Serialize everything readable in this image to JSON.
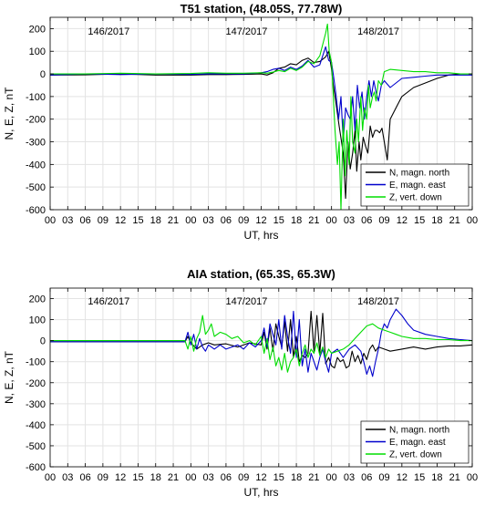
{
  "chart_data": [
    {
      "type": "line",
      "title": "T51 station, (48.05S, 77.78W)",
      "xlabel": "UT, hrs",
      "ylabel": "N, E, Z, nT",
      "xlim": [
        0,
        72
      ],
      "ylim": [
        -600,
        250
      ],
      "yticks": [
        -600,
        -500,
        -400,
        -300,
        -200,
        -100,
        0,
        100,
        200
      ],
      "xtick_labels": [
        "00",
        "03",
        "06",
        "09",
        "12",
        "15",
        "18",
        "21",
        "00",
        "03",
        "06",
        "09",
        "12",
        "15",
        "18",
        "21",
        "00",
        "03",
        "06",
        "09",
        "12",
        "15",
        "18",
        "21",
        "00"
      ],
      "day_labels": [
        {
          "text": "146/2017",
          "x": 10,
          "y": 190
        },
        {
          "text": "147/2017",
          "x": 33.5,
          "y": 190
        },
        {
          "text": "148/2017",
          "x": 56,
          "y": 190
        }
      ],
      "grid": true,
      "legend_position": "lower-right",
      "series": [
        {
          "name": "N, magn. north",
          "color": "#000000",
          "x": [
            0,
            6,
            12,
            18,
            24,
            27,
            30,
            33,
            36,
            37,
            38,
            39,
            40,
            41,
            42,
            43,
            44,
            45,
            46,
            47,
            47.5,
            48,
            48.3,
            48.7,
            49.3,
            50,
            50.4,
            50.8,
            51.2,
            51.6,
            52,
            52.3,
            52.7,
            53,
            53.4,
            53.8,
            54.2,
            54.6,
            55,
            55.4,
            55.8,
            56.2,
            56.6,
            57,
            57.5,
            58,
            59,
            60,
            62,
            64,
            66,
            68,
            70,
            72
          ],
          "y": [
            -5,
            -4,
            0,
            -5,
            -5,
            -3,
            -3,
            -2,
            0,
            -5,
            5,
            25,
            30,
            45,
            40,
            60,
            70,
            50,
            55,
            75,
            100,
            20,
            -50,
            -120,
            -230,
            -350,
            -550,
            -300,
            -420,
            -350,
            -250,
            -430,
            -300,
            -380,
            -280,
            -320,
            -350,
            -230,
            -280,
            -250,
            -250,
            -260,
            -240,
            -300,
            -380,
            -200,
            -150,
            -100,
            -60,
            -40,
            -20,
            -5,
            0,
            0
          ]
        },
        {
          "name": "E, magn. east",
          "color": "#0000cc",
          "x": [
            0,
            6,
            12,
            18,
            24,
            27,
            30,
            33,
            36,
            37,
            38,
            39,
            40,
            41,
            42,
            43,
            44,
            45,
            46,
            47,
            47.5,
            48,
            48.4,
            48.8,
            49.2,
            49.6,
            50,
            50.4,
            50.8,
            51.2,
            51.6,
            52,
            52.4,
            52.8,
            53.2,
            53.6,
            54,
            54.4,
            54.8,
            55.2,
            55.6,
            56,
            56.5,
            57,
            58,
            59,
            60,
            62,
            64,
            66,
            68,
            70,
            72
          ],
          "y": [
            -5,
            0,
            -3,
            0,
            -2,
            0,
            0,
            0,
            5,
            10,
            20,
            25,
            15,
            30,
            20,
            35,
            60,
            30,
            40,
            120,
            60,
            50,
            -20,
            -100,
            -200,
            -100,
            -300,
            -150,
            -180,
            -200,
            -100,
            -250,
            -50,
            -150,
            -80,
            -200,
            -100,
            -30,
            -100,
            -30,
            -80,
            -120,
            -50,
            -30,
            -60,
            -40,
            -20,
            -15,
            -10,
            -5,
            -5,
            -5,
            -5
          ]
        },
        {
          "name": "Z, vert. down",
          "color": "#00dd00",
          "x": [
            0,
            6,
            12,
            18,
            24,
            27,
            30,
            33,
            36,
            37,
            38,
            39,
            40,
            41,
            42,
            43,
            44,
            45,
            46,
            47,
            47.3,
            47.6,
            48,
            48.3,
            48.6,
            49,
            49.3,
            49.6,
            50,
            50.3,
            50.6,
            51,
            51.3,
            51.6,
            52,
            52.3,
            52.6,
            53,
            53.3,
            53.6,
            54,
            54.3,
            54.6,
            55,
            55.3,
            55.6,
            56,
            56.5,
            57,
            58,
            60,
            62,
            64,
            66,
            68,
            70,
            72
          ],
          "y": [
            0,
            0,
            3,
            0,
            2,
            5,
            3,
            3,
            5,
            3,
            8,
            15,
            10,
            25,
            15,
            30,
            55,
            45,
            80,
            180,
            220,
            100,
            50,
            -100,
            -250,
            -400,
            -300,
            -600,
            -200,
            -450,
            -250,
            -400,
            -100,
            -300,
            -350,
            -200,
            -300,
            -100,
            -250,
            -150,
            -200,
            -50,
            -150,
            -100,
            -80,
            -120,
            -30,
            -50,
            10,
            20,
            15,
            10,
            10,
            5,
            5,
            0,
            0
          ]
        }
      ]
    },
    {
      "type": "line",
      "title": "AIA station, (65.3S, 65.3W)",
      "xlabel": "UT, hrs",
      "ylabel": "N, E, Z, nT",
      "xlim": [
        0,
        72
      ],
      "ylim": [
        -600,
        250
      ],
      "yticks": [
        -600,
        -500,
        -400,
        -300,
        -200,
        -100,
        0,
        100,
        200
      ],
      "xtick_labels": [
        "00",
        "03",
        "06",
        "09",
        "12",
        "15",
        "18",
        "21",
        "00",
        "03",
        "06",
        "09",
        "12",
        "15",
        "18",
        "21",
        "00",
        "03",
        "06",
        "09",
        "12",
        "15",
        "18",
        "21",
        "00"
      ],
      "day_labels": [
        {
          "text": "146/2017",
          "x": 10,
          "y": 190
        },
        {
          "text": "147/2017",
          "x": 33.5,
          "y": 190
        },
        {
          "text": "148/2017",
          "x": 56,
          "y": 190
        }
      ],
      "grid": true,
      "legend_position": "lower-right",
      "series": [
        {
          "name": "N, magn. north",
          "color": "#000000",
          "x": [
            0,
            6,
            12,
            18,
            23,
            23.5,
            24,
            25,
            26,
            27,
            28,
            30,
            32,
            34,
            36,
            36.5,
            37,
            37.5,
            38,
            38.5,
            39,
            39.5,
            40,
            40.5,
            41,
            41.5,
            42,
            42.5,
            43,
            43.5,
            44,
            44.5,
            45,
            45.5,
            46,
            46.5,
            47,
            47.5,
            48,
            48.5,
            49,
            49.5,
            50,
            50.5,
            51,
            51.5,
            52,
            52.5,
            53,
            53.5,
            54,
            54.5,
            55,
            55.5,
            56,
            57,
            58,
            60,
            62,
            64,
            66,
            68,
            70,
            72
          ],
          "y": [
            -5,
            -5,
            -5,
            -5,
            -5,
            20,
            -10,
            -40,
            -20,
            -10,
            -20,
            -15,
            -30,
            -10,
            -20,
            40,
            -40,
            60,
            -50,
            80,
            20,
            -30,
            90,
            -50,
            100,
            -80,
            20,
            -100,
            -70,
            -80,
            -60,
            140,
            -50,
            120,
            -60,
            130,
            -110,
            -80,
            -120,
            -130,
            -80,
            -100,
            -90,
            -130,
            -120,
            -50,
            -100,
            -70,
            -110,
            -60,
            -90,
            -40,
            -20,
            -50,
            -30,
            -40,
            -50,
            -40,
            -30,
            -40,
            -30,
            -25,
            -25,
            -20
          ]
        },
        {
          "name": "E, magn. east",
          "color": "#0000cc",
          "x": [
            0,
            6,
            12,
            18,
            23,
            23.5,
            24,
            24.5,
            25,
            25.5,
            26,
            26.5,
            27,
            28,
            29,
            30,
            31,
            32,
            33,
            34,
            35,
            36,
            36.5,
            37,
            37.5,
            38,
            38.5,
            39,
            39.5,
            40,
            40.5,
            41,
            41.5,
            42,
            42.5,
            43,
            43.5,
            44,
            44.5,
            45,
            45.5,
            46,
            46.5,
            47,
            47.5,
            48,
            49,
            50,
            51,
            52,
            53,
            53.5,
            54,
            54.5,
            55,
            55.5,
            56,
            56.5,
            57,
            57.5,
            58,
            59,
            60,
            61,
            62,
            64,
            66,
            68,
            70,
            72
          ],
          "y": [
            -5,
            -5,
            -5,
            -5,
            -5,
            40,
            -20,
            30,
            -40,
            10,
            -30,
            -50,
            -20,
            -40,
            -20,
            -40,
            -30,
            -20,
            -40,
            -10,
            -30,
            0,
            60,
            -30,
            80,
            30,
            -20,
            100,
            -40,
            120,
            20,
            -60,
            140,
            -80,
            100,
            -120,
            -40,
            -150,
            -60,
            -100,
            -140,
            -80,
            -40,
            -100,
            -150,
            -60,
            -40,
            -80,
            -40,
            -20,
            -50,
            -100,
            -160,
            -120,
            -170,
            -100,
            -40,
            40,
            80,
            60,
            100,
            150,
            120,
            80,
            50,
            30,
            20,
            10,
            5,
            0
          ]
        },
        {
          "name": "Z, vert. down",
          "color": "#00dd00",
          "x": [
            0,
            6,
            12,
            18,
            23,
            23.5,
            24,
            24.5,
            25,
            25.5,
            26,
            26.5,
            27,
            27.5,
            28,
            29,
            30,
            31,
            32,
            33,
            34,
            35,
            36,
            36.5,
            37,
            37.5,
            38,
            38.5,
            39,
            39.5,
            40,
            40.5,
            41,
            41.5,
            42,
            42.5,
            43,
            43.5,
            44,
            44.5,
            45,
            45.5,
            46,
            46.5,
            47,
            47.5,
            48,
            49,
            50,
            51,
            52,
            53,
            54,
            55,
            56,
            57,
            58,
            59,
            60,
            61,
            62,
            64,
            66,
            68,
            70,
            72
          ],
          "y": [
            0,
            0,
            0,
            0,
            0,
            -40,
            20,
            -50,
            10,
            40,
            120,
            30,
            50,
            80,
            20,
            40,
            30,
            10,
            20,
            -10,
            0,
            -20,
            20,
            -60,
            10,
            -90,
            -30,
            -120,
            -80,
            -140,
            -60,
            -150,
            -100,
            -80,
            -40,
            -120,
            -60,
            -20,
            -80,
            -40,
            -60,
            -10,
            -70,
            -30,
            -80,
            -40,
            -60,
            -50,
            -40,
            -20,
            10,
            40,
            70,
            80,
            60,
            50,
            40,
            30,
            20,
            15,
            10,
            10,
            5,
            5,
            0,
            0
          ]
        }
      ]
    }
  ]
}
